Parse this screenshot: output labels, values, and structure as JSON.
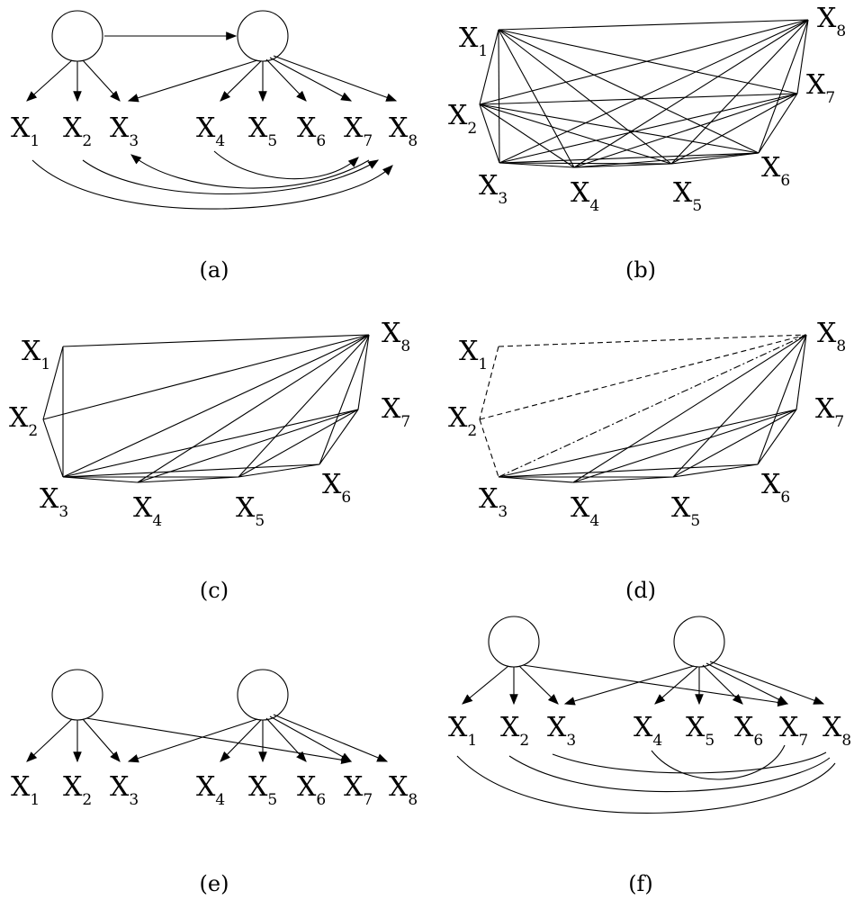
{
  "panels": [
    {
      "key": "a",
      "caption": "(a)"
    },
    {
      "key": "b",
      "caption": "(b)"
    },
    {
      "key": "c",
      "caption": "(c)"
    },
    {
      "key": "d",
      "caption": "(d)"
    },
    {
      "key": "e",
      "caption": "(e)"
    },
    {
      "key": "f",
      "caption": "(f)"
    }
  ],
  "variable_letter": "X",
  "variable_indices": [
    "1",
    "2",
    "3",
    "4",
    "5",
    "6",
    "7",
    "8"
  ],
  "colors": {
    "ink": "#000000",
    "background": "#ffffff"
  }
}
